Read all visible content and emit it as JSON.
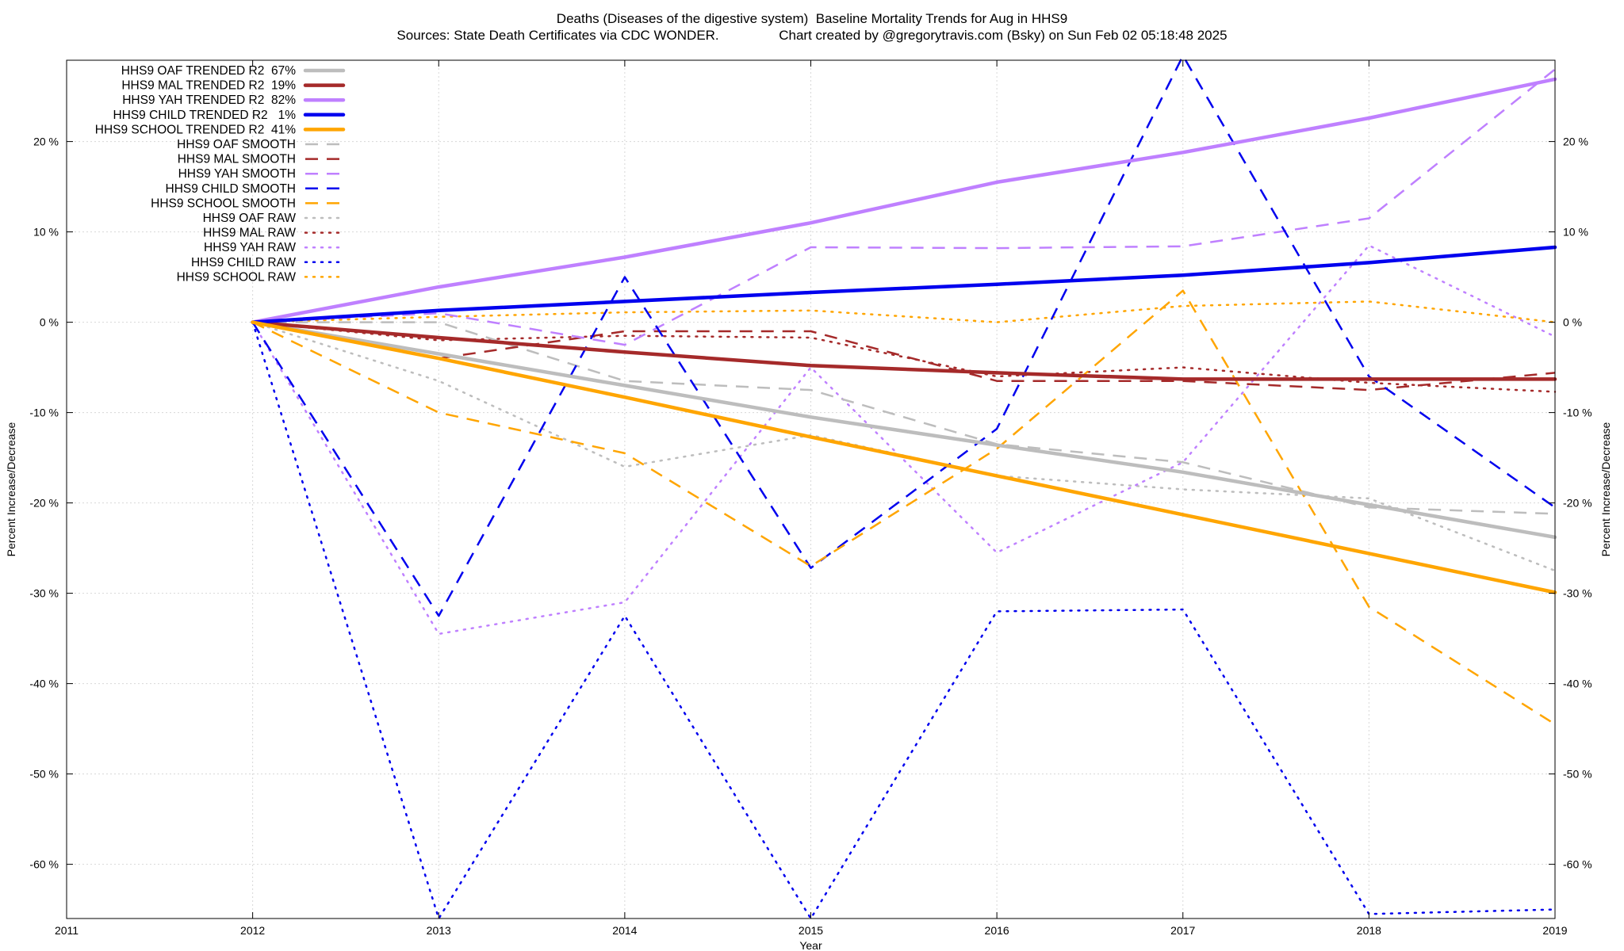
{
  "header": {
    "title": "Deaths (Diseases of the digestive system)  Baseline Mortality Trends for Aug in HHS9",
    "subtitle": "Sources: State Death Certificates via CDC WONDER.                Chart created by @gregorytravis.com (Bsky) on Sun Feb 02 05:18:48 2025"
  },
  "chart_data": {
    "type": "line",
    "xlabel": "Year",
    "ylabel": "Percent Increase/Decrease",
    "y2label": "Percent Increase/Decrease",
    "xlim": [
      2011,
      2019
    ],
    "ylim": [
      -66,
      29
    ],
    "x_ticks": [
      2011,
      2012,
      2013,
      2014,
      2015,
      2016,
      2017,
      2018,
      2019
    ],
    "y_ticks": [
      20,
      10,
      0,
      -10,
      -20,
      -30,
      -40,
      -50,
      -60
    ],
    "y_tick_labels": [
      "20 %",
      "10 %",
      "0 %",
      "-10 %",
      "-20 %",
      "-30 %",
      "-40 %",
      "-50 %",
      "-60 %"
    ],
    "grid": true,
    "legend_position": "top-left",
    "colors": {
      "OAF": "#bdbdbd",
      "MAL": "#a52a2a",
      "YAH": "#bf80ff",
      "CHILD": "#0000ee",
      "SCHOOL": "#ffa500"
    },
    "x": [
      2012,
      2013,
      2014,
      2015,
      2016,
      2017,
      2018,
      2019
    ],
    "series": [
      {
        "name": "HHS9 OAF TRENDED R2  67%",
        "group": "OAF",
        "style": "trend",
        "values": [
          0,
          -3.5,
          -7,
          -10.5,
          -13.6,
          -16.6,
          -20.2,
          -23.8
        ]
      },
      {
        "name": "HHS9 MAL TRENDED R2  19%",
        "group": "MAL",
        "style": "trend",
        "values": [
          0,
          -1.7,
          -3.3,
          -4.8,
          -5.6,
          -6.3,
          -6.3,
          -6.3
        ]
      },
      {
        "name": "HHS9 YAH TRENDED R2  82%",
        "group": "YAH",
        "style": "trend",
        "values": [
          0,
          3.9,
          7.2,
          11,
          15.5,
          18.8,
          22.6,
          26.9
        ]
      },
      {
        "name": "HHS9 CHILD TRENDED R2   1%",
        "group": "CHILD",
        "style": "trend",
        "values": [
          0,
          1.3,
          2.3,
          3.3,
          4.2,
          5.2,
          6.6,
          8.3
        ]
      },
      {
        "name": "HHS9 SCHOOL TRENDED R2  41%",
        "group": "SCHOOL",
        "style": "trend",
        "values": [
          0,
          -4,
          -8.3,
          -12.7,
          -17,
          -21.3,
          -25.6,
          -29.9
        ]
      },
      {
        "name": "HHS9 OAF SMOOTH",
        "group": "OAF",
        "style": "smooth",
        "values": [
          0,
          0,
          -6.5,
          -7.5,
          -13.5,
          -15.5,
          -20.5,
          -21.2
        ]
      },
      {
        "name": "HHS9 MAL SMOOTH",
        "group": "MAL",
        "style": "smooth",
        "values": [
          0,
          -4,
          -1,
          -1,
          -6.5,
          -6.5,
          -7.5,
          -5.6
        ]
      },
      {
        "name": "HHS9 YAH SMOOTH",
        "group": "YAH",
        "style": "smooth",
        "values": [
          0,
          1,
          -2.5,
          8.3,
          8.2,
          8.4,
          11.5,
          28
        ]
      },
      {
        "name": "HHS9 CHILD SMOOTH",
        "group": "CHILD",
        "style": "smooth",
        "values": [
          0,
          -32.5,
          5,
          -27.2,
          -11.8,
          29.5,
          -6,
          -20.5
        ]
      },
      {
        "name": "HHS9 SCHOOL SMOOTH",
        "group": "SCHOOL",
        "style": "smooth",
        "values": [
          0,
          -10,
          -14.5,
          -27,
          -14,
          3.5,
          -31.5,
          -44.5
        ]
      },
      {
        "name": "HHS9 OAF RAW",
        "group": "OAF",
        "style": "raw",
        "values": [
          0,
          -6.5,
          -16,
          -12.5,
          -17,
          -18.5,
          -19.5,
          -27.5
        ]
      },
      {
        "name": "HHS9 MAL RAW",
        "group": "MAL",
        "style": "raw",
        "values": [
          0,
          -2,
          -1.5,
          -1.7,
          -6,
          -5,
          -6.7,
          -7.7
        ]
      },
      {
        "name": "HHS9 YAH RAW",
        "group": "YAH",
        "style": "raw",
        "values": [
          0,
          -34.5,
          -31,
          -5,
          -25.5,
          -15.5,
          8.5,
          -1.6
        ]
      },
      {
        "name": "HHS9 CHILD RAW",
        "group": "CHILD",
        "style": "raw",
        "values": [
          0,
          -66,
          -32.5,
          -66,
          -32,
          -31.8,
          -65.5,
          -65
        ]
      },
      {
        "name": "HHS9 SCHOOL RAW",
        "group": "SCHOOL",
        "style": "raw",
        "values": [
          0,
          0.6,
          1.1,
          1.3,
          0,
          1.8,
          2.3,
          0
        ]
      }
    ]
  }
}
